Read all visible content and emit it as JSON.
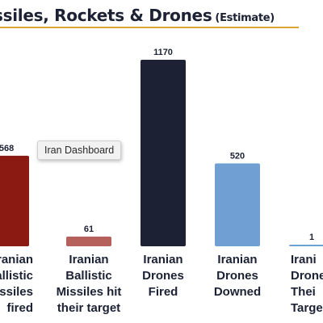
{
  "header": {
    "title": "ssiles, Rockets & Drones",
    "subtitle": "(Estimate)"
  },
  "tooltip": {
    "text": "Iran Dashboard"
  },
  "colors": {
    "title": "#1c2134",
    "rule": "#d8a830",
    "label": "#1c2134"
  },
  "chart_data": {
    "type": "bar",
    "title": "ssiles, Rockets & Drones (Estimate)",
    "categories": [
      [
        "Iranian",
        "Ballistic",
        "Missiles",
        "Fired"
      ],
      [
        "Iranian",
        "Ballistic",
        "Missiles hit",
        "their target"
      ],
      [
        "Iranian",
        "Drones",
        "Fired"
      ],
      [
        "Iranian",
        "Drones",
        "Downed"
      ],
      [
        "Iranian",
        "Drones hit",
        "Their",
        "Target"
      ]
    ],
    "displayed_labels": [
      [
        "ranian",
        "allistic",
        "issiles",
        "fired"
      ],
      [
        "Iranian",
        "Ballistic",
        "Missiles hit",
        "their target"
      ],
      [
        "Iranian",
        "Drones",
        "Fired"
      ],
      [
        "Iranian",
        "Drones",
        "Downed"
      ],
      [
        "Irani",
        "Drones",
        "Thei",
        "Targe"
      ]
    ],
    "values": [
      568,
      61,
      1170,
      520,
      1
    ],
    "value_labels": [
      "568",
      "61",
      "1170",
      "520",
      "1"
    ],
    "colors": [
      "#8a1a12",
      "#b5605a",
      "#1c2134",
      "#6f9fd3",
      "#6f9fd3"
    ],
    "ylim": [
      0,
      1170
    ],
    "grid": false,
    "legend": "none"
  }
}
